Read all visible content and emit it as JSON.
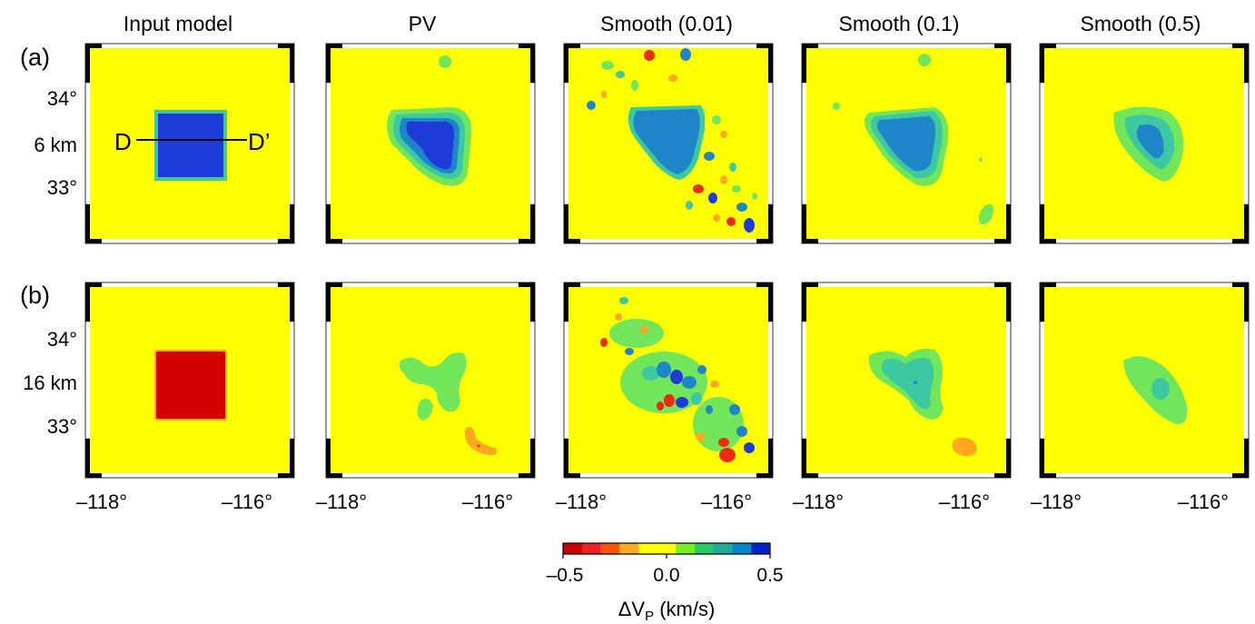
{
  "columns": [
    "Input model",
    "PV",
    "Smooth (0.01)",
    "Smooth (0.1)",
    "Smooth (0.5)"
  ],
  "rows": [
    {
      "label": "(a)",
      "depth": "6 km",
      "lat_ticks": [
        "34°",
        "33°"
      ]
    },
    {
      "label": "(b)",
      "depth": "16 km",
      "lat_ticks": [
        "34°",
        "33°"
      ]
    }
  ],
  "lon_ticks": [
    "–118°",
    "–116°"
  ],
  "profile": {
    "start": "D",
    "end": "D’"
  },
  "colorbar": {
    "colors": [
      "#cc0000",
      "#ee2222",
      "#ff5500",
      "#ffaa22",
      "#ffff00",
      "#ffff00",
      "#77ee22",
      "#22cc66",
      "#22aa99",
      "#0088cc",
      "#0022cc"
    ],
    "tick_labels": [
      "–0.5",
      "0.0",
      "0.5"
    ],
    "label": "ΔV",
    "label_subscript": "P",
    "label_units": " (km/s)"
  },
  "colors": {
    "background": "#ffff00",
    "fast_strong": "#1e3ad8",
    "fast": "#1e86c8",
    "mid": "#3cc8a0",
    "slow_light": "#72e65a",
    "slow_strong": "#d40000",
    "orange": "#ffa81e",
    "red": "#ee2a10"
  }
}
